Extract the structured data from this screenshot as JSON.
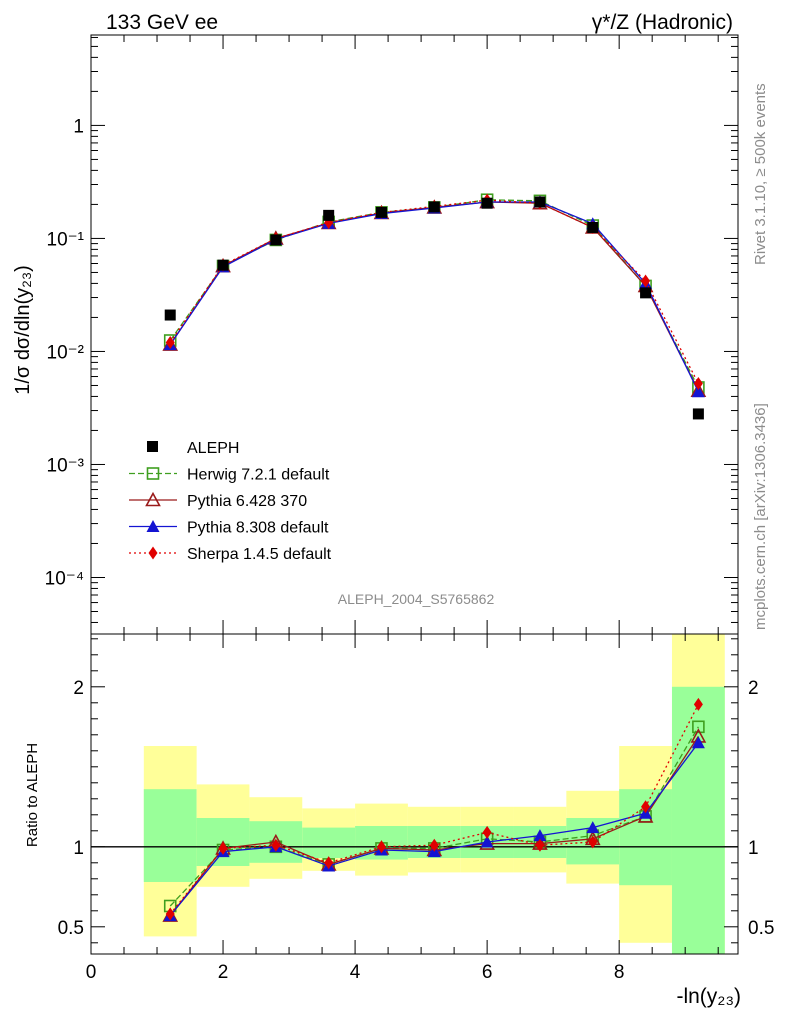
{
  "header": {
    "left_title": "133 GeV ee",
    "right_title": "γ*/Z (Hadronic)",
    "side_text_top": "Rivet 3.1.10, ≥ 500k events",
    "side_text_bottom": "mcplots.cern.ch [arXiv:1306.3436]",
    "analysis_id": "ALEPH_2004_S5765862"
  },
  "chart_data": {
    "type": "scatter",
    "x_label": "-ln(y₂₃)",
    "y_label_main": "1/σ dσ/dln(y₂₃)",
    "y_label_ratio": "Ratio to ALEPH",
    "x_range": [
      0,
      9.8
    ],
    "y_range_main_log10": [
      -4.5,
      0.8
    ],
    "y_range_ratio": [
      0.33,
      2.33
    ],
    "x_ticks": [
      "0",
      "2",
      "4",
      "6",
      "8"
    ],
    "y_ticks_main": [
      "10⁻⁴",
      "10⁻³",
      "10⁻²",
      "10⁻¹",
      "1"
    ],
    "y_ticks_ratio": [
      "0.5",
      "1",
      "2"
    ],
    "x": [
      1.2,
      2.0,
      2.8,
      3.6,
      4.4,
      5.2,
      6.0,
      6.8,
      7.6,
      8.4,
      9.2
    ],
    "bins": [
      [
        0.8,
        1.6
      ],
      [
        1.6,
        2.4
      ],
      [
        2.4,
        3.2
      ],
      [
        3.2,
        4.0
      ],
      [
        4.0,
        4.8
      ],
      [
        4.8,
        5.6
      ],
      [
        5.6,
        6.4
      ],
      [
        6.4,
        7.2
      ],
      [
        7.2,
        8.0
      ],
      [
        8.0,
        8.8
      ],
      [
        8.8,
        9.6
      ]
    ],
    "data": {
      "name": "ALEPH",
      "values": [
        0.021,
        0.058,
        0.097,
        0.16,
        0.17,
        0.19,
        0.205,
        0.21,
        0.125,
        0.033,
        0.0028
      ],
      "band_inner": [
        [
          0.78,
          1.36
        ],
        [
          0.88,
          1.18
        ],
        [
          0.9,
          1.16
        ],
        [
          0.93,
          1.12
        ],
        [
          0.92,
          1.13
        ],
        [
          0.93,
          1.13
        ],
        [
          0.93,
          1.13
        ],
        [
          0.93,
          1.13
        ],
        [
          0.89,
          1.18
        ],
        [
          0.76,
          1.36
        ],
        [
          0.33,
          2.0
        ]
      ],
      "band_outer": [
        [
          0.44,
          1.63
        ],
        [
          0.75,
          1.39
        ],
        [
          0.8,
          1.31
        ],
        [
          0.85,
          1.24
        ],
        [
          0.82,
          1.27
        ],
        [
          0.84,
          1.25
        ],
        [
          0.84,
          1.25
        ],
        [
          0.84,
          1.25
        ],
        [
          0.77,
          1.35
        ],
        [
          0.4,
          1.63
        ],
        [
          0.33,
          2.33
        ]
      ]
    },
    "series": [
      {
        "name": "Herwig 7.2.1 default",
        "color": "#3f9f1f",
        "dash": "6,3",
        "marker": "open-square",
        "values": [
          0.0125,
          0.057,
          0.097,
          0.14,
          0.17,
          0.188,
          0.22,
          0.215,
          0.13,
          0.038,
          0.0048
        ],
        "ratio": [
          0.63,
          0.98,
          1.0,
          0.89,
          0.99,
          0.99,
          1.05,
          1.03,
          1.07,
          1.19,
          1.75
        ]
      },
      {
        "name": "Pythia 6.428 370",
        "color": "#9a1a1a",
        "dash": "",
        "marker": "open-triangle",
        "values": [
          0.0115,
          0.057,
          0.1,
          0.137,
          0.168,
          0.188,
          0.21,
          0.205,
          0.125,
          0.038,
          0.0045
        ],
        "ratio": [
          0.57,
          0.99,
          1.03,
          0.89,
          0.99,
          0.98,
          1.02,
          1.02,
          1.05,
          1.19,
          1.69
        ]
      },
      {
        "name": "Pythia 8.308 default",
        "color": "#1414d2",
        "dash": "",
        "marker": "filled-triangle",
        "values": [
          0.0115,
          0.056,
          0.098,
          0.136,
          0.166,
          0.186,
          0.21,
          0.21,
          0.135,
          0.04,
          0.0044
        ],
        "ratio": [
          0.57,
          0.97,
          1.0,
          0.88,
          0.98,
          0.97,
          1.03,
          1.07,
          1.12,
          1.21,
          1.65
        ]
      },
      {
        "name": "Sherpa 1.4.5 default",
        "color": "#e00000",
        "dash": "2,3",
        "marker": "filled-diamond",
        "values": [
          0.012,
          0.058,
          0.1,
          0.138,
          0.17,
          0.192,
          0.218,
          0.205,
          0.125,
          0.042,
          0.0052
        ],
        "ratio": [
          0.58,
          0.99,
          1.01,
          0.9,
          1.0,
          1.01,
          1.09,
          1.01,
          1.03,
          1.25,
          1.89
        ]
      }
    ]
  }
}
